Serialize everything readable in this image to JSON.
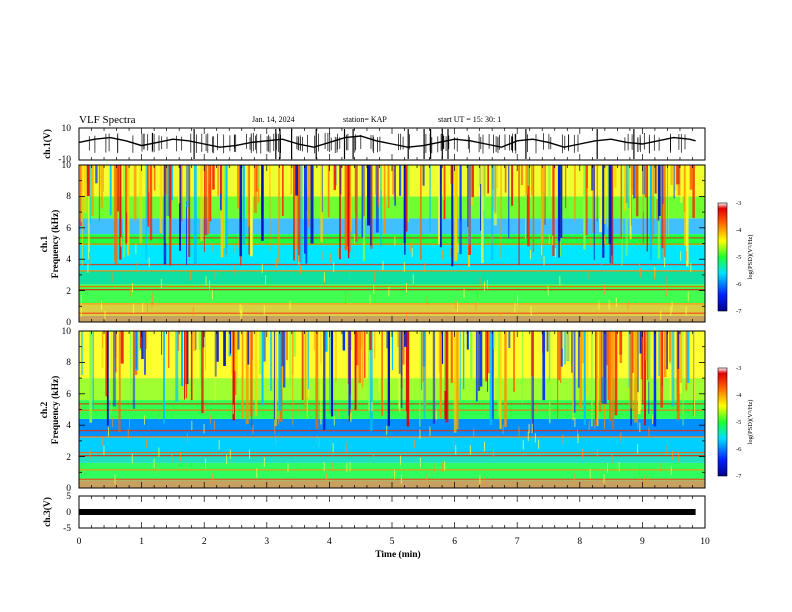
{
  "header": {
    "title": "VLF Spectra",
    "date": "Jan. 14, 2024",
    "station": "station= KAP",
    "start": "start  UT  =  15: 30: 1"
  },
  "chart_data": [
    {
      "type": "line",
      "ylabel": "ch.1(V)",
      "xlim": [
        0,
        10
      ],
      "ylim": [
        -10,
        10
      ],
      "ytick_labels": [
        "10",
        "-10"
      ],
      "series": [
        {
          "x": [
            0,
            0.25,
            0.5,
            0.75,
            1.0,
            1.25,
            1.5,
            1.75,
            2.0,
            2.25,
            2.5,
            2.75,
            3.0,
            3.25,
            3.5,
            3.75,
            4.0,
            4.25,
            4.5,
            4.75,
            5.0,
            5.25,
            5.5,
            5.75,
            6.0,
            6.25,
            6.5,
            6.75,
            7.0,
            7.25,
            7.5,
            7.75,
            8.0,
            8.25,
            8.5,
            8.75,
            9.0,
            9.25,
            9.5,
            9.75,
            9.85
          ],
          "y": [
            1,
            3,
            4,
            2,
            -1,
            1,
            3,
            2,
            0,
            -2,
            -1,
            1,
            2,
            3,
            0,
            -2,
            1,
            4,
            5,
            2,
            0,
            -2,
            -1,
            1,
            3,
            2,
            0,
            -2,
            2,
            3,
            1,
            -2,
            0,
            2,
            3,
            1,
            0,
            2,
            4,
            3,
            2
          ]
        }
      ]
    },
    {
      "type": "heatmap",
      "ylabel": "ch.1",
      "ylabel2": "Frequency (kHz)",
      "xlim": [
        0,
        10
      ],
      "ylim": [
        0,
        10
      ],
      "ytick_labels": [
        "0",
        "2",
        "4",
        "6",
        "8",
        "10"
      ],
      "colorbar": {
        "label": "log(PSD)(V²/Hz)",
        "range": [
          -7,
          -3
        ],
        "tick_labels": [
          "-3",
          "-4",
          "-5",
          "-6",
          "-7"
        ]
      }
    },
    {
      "type": "heatmap",
      "ylabel": "ch.2",
      "ylabel2": "Frequency (kHz)",
      "xlim": [
        0,
        10
      ],
      "ylim": [
        0,
        10
      ],
      "ytick_labels": [
        "0",
        "2",
        "4",
        "6",
        "8",
        "10"
      ],
      "colorbar": {
        "label": "log(PSD)(V²/Hz)",
        "range": [
          -7,
          -3
        ],
        "tick_labels": [
          "-3",
          "-4",
          "-5",
          "-6",
          "-7"
        ]
      }
    },
    {
      "type": "line",
      "ylabel": "ch.3(V)",
      "xlim": [
        0,
        10
      ],
      "ylim": [
        -5,
        5
      ],
      "ytick_labels": [
        "5",
        "0",
        "-5"
      ],
      "series": [
        {
          "x": [
            0,
            9.85
          ],
          "y": [
            0,
            0
          ]
        }
      ]
    }
  ],
  "xaxis": {
    "label": "Time (min)",
    "tick_labels": [
      "0",
      "1",
      "2",
      "3",
      "4",
      "5",
      "6",
      "7",
      "8",
      "9",
      "10"
    ]
  }
}
